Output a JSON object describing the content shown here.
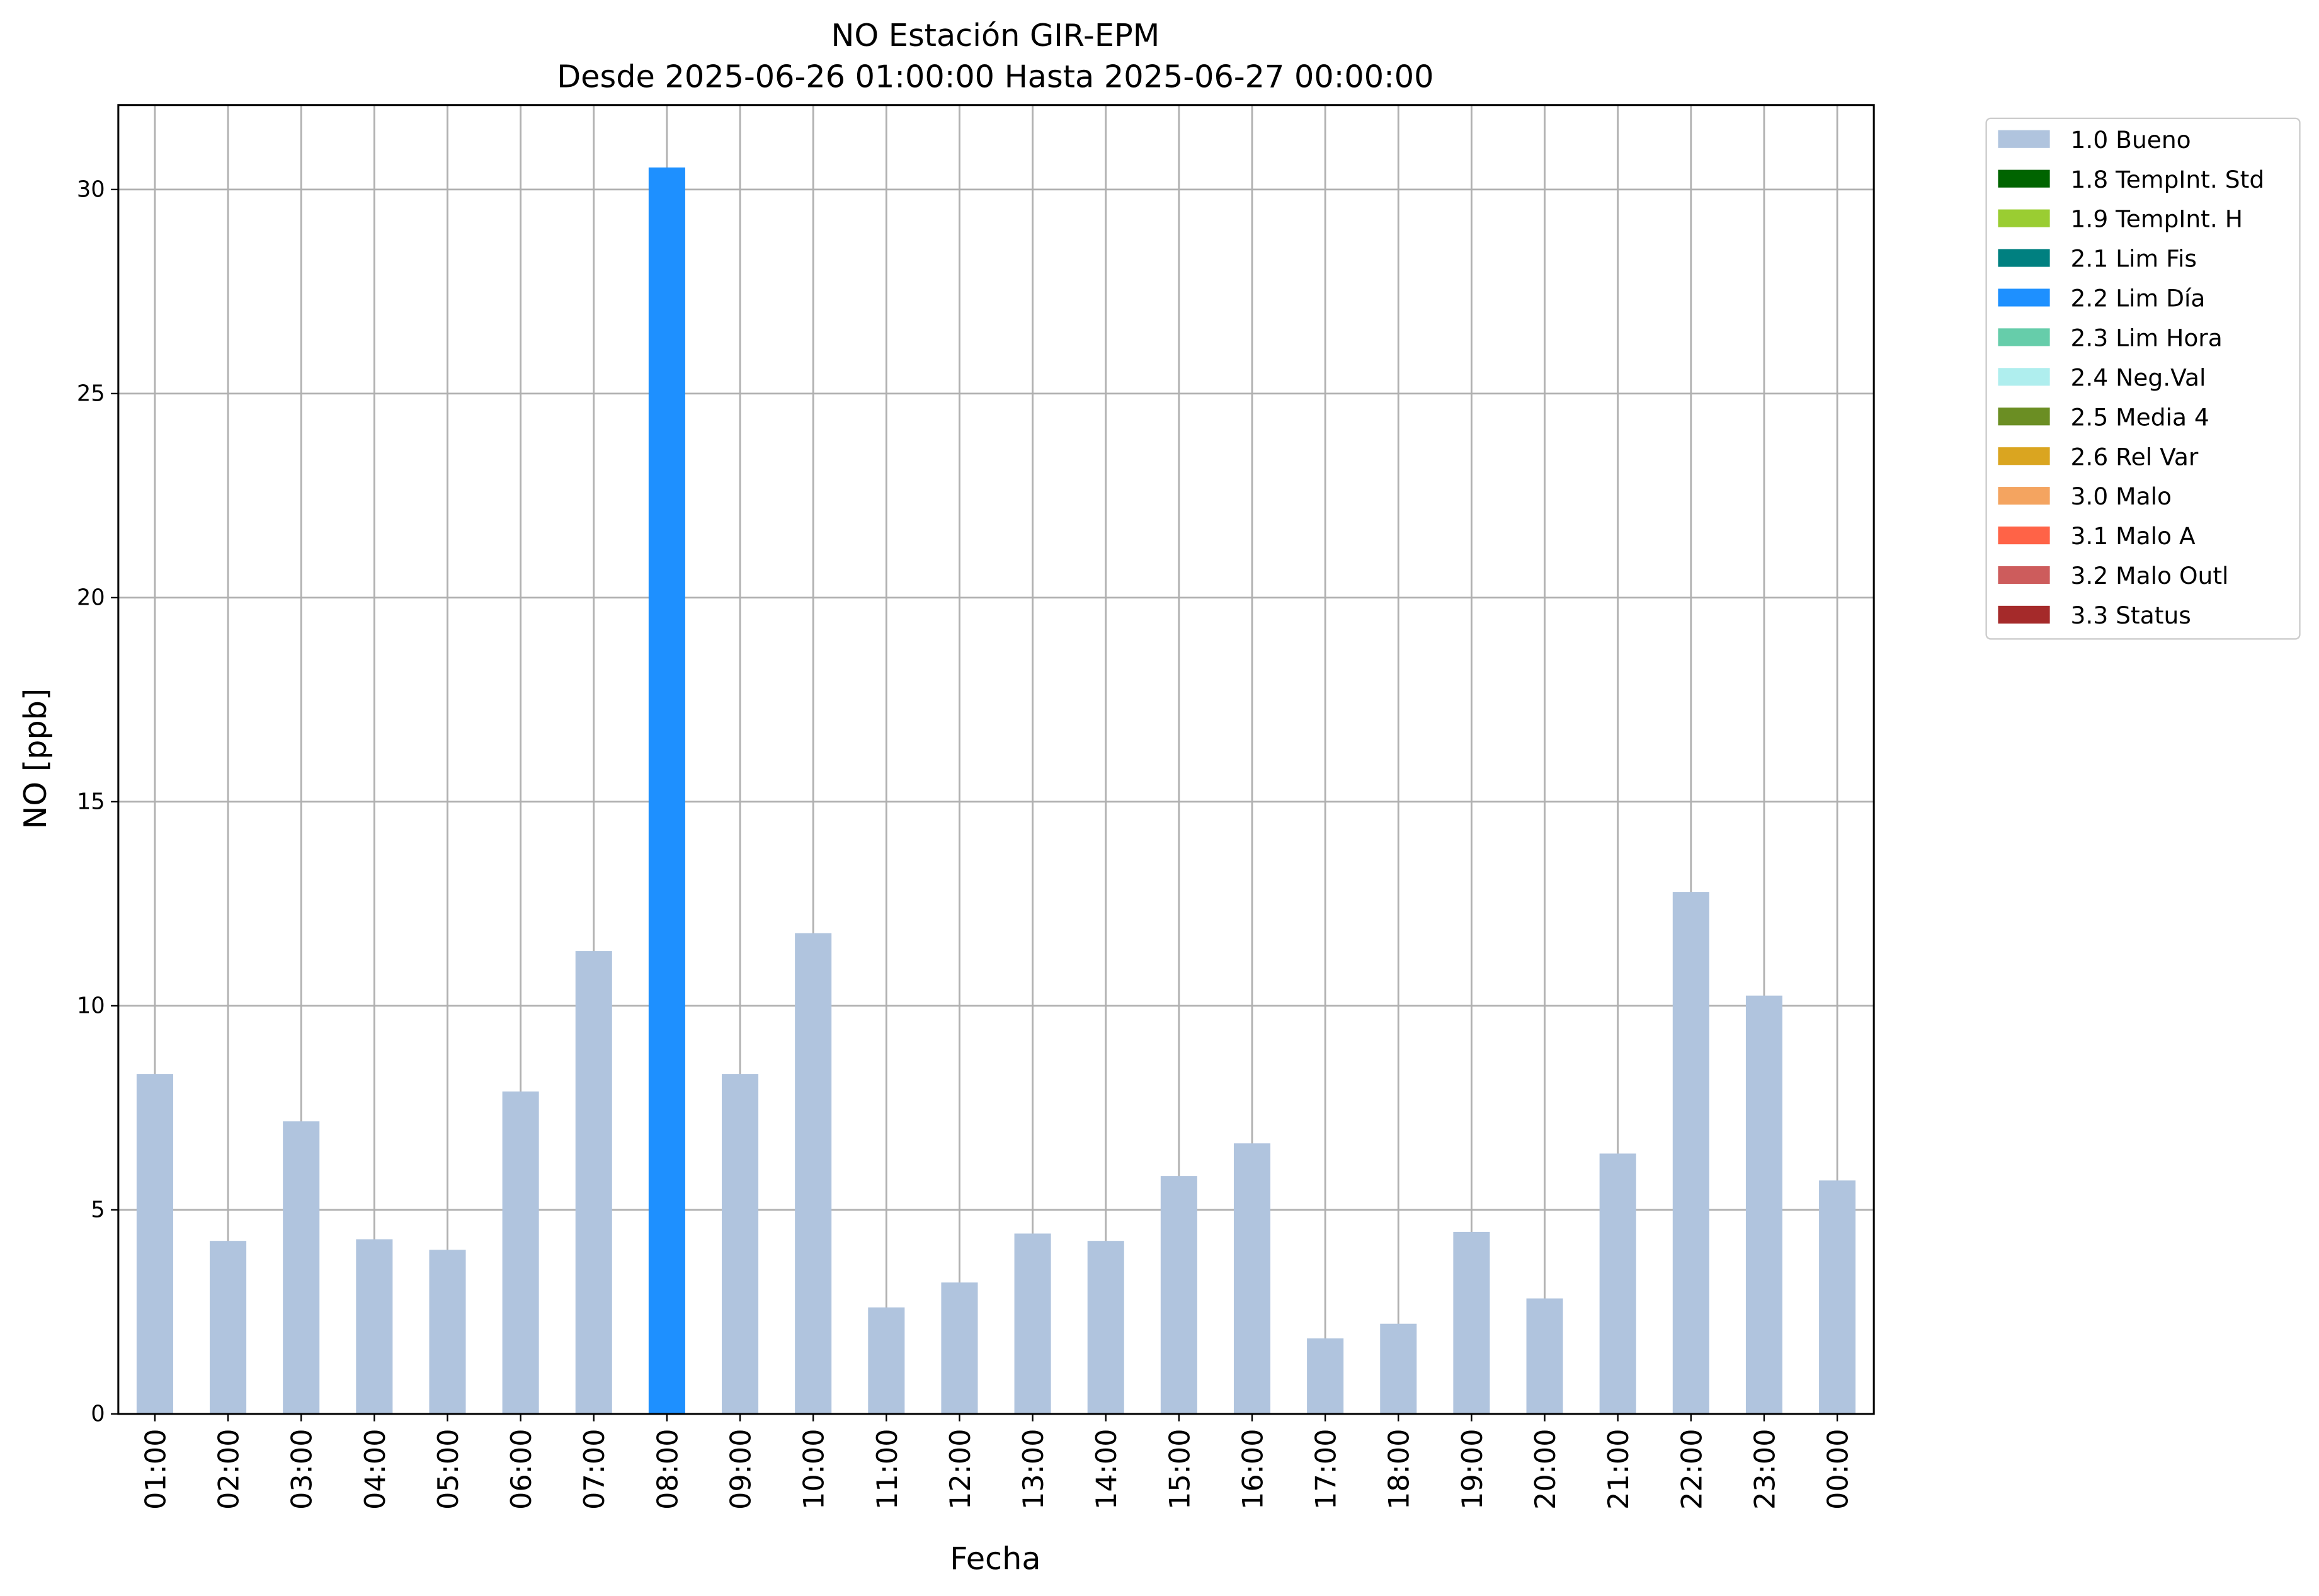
{
  "chart_data": {
    "type": "bar",
    "stacked": true,
    "title": "NO Estación GIR-EPM",
    "subtitle": "Desde 2025-06-26 01:00:00 Hasta 2025-06-27 00:00:00",
    "x_label": "Fecha",
    "y_label": "NO [ppb]",
    "categories": [
      "01:00",
      "02:00",
      "03:00",
      "04:00",
      "05:00",
      "06:00",
      "07:00",
      "08:00",
      "09:00",
      "10:00",
      "11:00",
      "12:00",
      "13:00",
      "14:00",
      "15:00",
      "16:00",
      "17:00",
      "18:00",
      "19:00",
      "20:00",
      "21:00",
      "22:00",
      "23:00",
      "00:00"
    ],
    "series": [
      {
        "name": "1.0 Bueno",
        "color": "#b0c4de",
        "values": [
          8.33,
          4.24,
          7.17,
          4.28,
          4.02,
          7.9,
          11.34,
          null,
          8.33,
          11.78,
          2.61,
          3.22,
          4.42,
          4.24,
          5.83,
          6.63,
          1.85,
          2.21,
          4.46,
          2.83,
          6.38,
          12.79,
          10.25,
          5.72
        ]
      },
      {
        "name": "1.8 TempInt. Std",
        "color": "#006400",
        "values": [
          null,
          null,
          null,
          null,
          null,
          null,
          null,
          null,
          null,
          null,
          null,
          null,
          null,
          null,
          null,
          null,
          null,
          null,
          null,
          null,
          null,
          null,
          null,
          null
        ]
      },
      {
        "name": "1.9 TempInt. H",
        "color": "#9acd32",
        "values": [
          null,
          null,
          null,
          null,
          null,
          null,
          null,
          null,
          null,
          null,
          null,
          null,
          null,
          null,
          null,
          null,
          null,
          null,
          null,
          null,
          null,
          null,
          null,
          null
        ]
      },
      {
        "name": "2.1 Lim Fis",
        "color": "#008080",
        "values": [
          null,
          null,
          null,
          null,
          null,
          null,
          null,
          null,
          null,
          null,
          null,
          null,
          null,
          null,
          null,
          null,
          null,
          null,
          null,
          null,
          null,
          null,
          null,
          null
        ]
      },
      {
        "name": "2.2 Lim Día",
        "color": "#1e90ff",
        "values": [
          null,
          null,
          null,
          null,
          null,
          null,
          null,
          30.54,
          null,
          null,
          null,
          null,
          null,
          null,
          null,
          null,
          null,
          null,
          null,
          null,
          null,
          null,
          null,
          null
        ]
      },
      {
        "name": "2.3 Lim Hora",
        "color": "#66cdaa",
        "values": [
          null,
          null,
          null,
          null,
          null,
          null,
          null,
          null,
          null,
          null,
          null,
          null,
          null,
          null,
          null,
          null,
          null,
          null,
          null,
          null,
          null,
          null,
          null,
          null
        ]
      },
      {
        "name": "2.4 Neg.Val",
        "color": "#afeeee",
        "values": [
          null,
          null,
          null,
          null,
          null,
          null,
          null,
          null,
          null,
          null,
          null,
          null,
          null,
          null,
          null,
          null,
          null,
          null,
          null,
          null,
          null,
          null,
          null,
          null
        ]
      },
      {
        "name": "2.5 Media 4",
        "color": "#6b8e23",
        "values": [
          null,
          null,
          null,
          null,
          null,
          null,
          null,
          null,
          null,
          null,
          null,
          null,
          null,
          null,
          null,
          null,
          null,
          null,
          null,
          null,
          null,
          null,
          null,
          null
        ]
      },
      {
        "name": "2.6 Rel Var",
        "color": "#daa520",
        "values": [
          null,
          null,
          null,
          null,
          null,
          null,
          null,
          null,
          null,
          null,
          null,
          null,
          null,
          null,
          null,
          null,
          null,
          null,
          null,
          null,
          null,
          null,
          null,
          null
        ]
      },
      {
        "name": "3.0 Malo",
        "color": "#f4a460",
        "values": [
          null,
          null,
          null,
          null,
          null,
          null,
          null,
          null,
          null,
          null,
          null,
          null,
          null,
          null,
          null,
          null,
          null,
          null,
          null,
          null,
          null,
          null,
          null,
          null
        ]
      },
      {
        "name": "3.1 Malo A",
        "color": "#ff6347",
        "values": [
          null,
          null,
          null,
          null,
          null,
          null,
          null,
          null,
          null,
          null,
          null,
          null,
          null,
          null,
          null,
          null,
          null,
          null,
          null,
          null,
          null,
          null,
          null,
          null
        ]
      },
      {
        "name": "3.2 Malo Outl",
        "color": "#cd5c5c",
        "values": [
          null,
          null,
          null,
          null,
          null,
          null,
          null,
          null,
          null,
          null,
          null,
          null,
          null,
          null,
          null,
          null,
          null,
          null,
          null,
          null,
          null,
          null,
          null,
          null
        ]
      },
      {
        "name": "3.3 Status",
        "color": "#a52a2a",
        "values": [
          null,
          null,
          null,
          null,
          null,
          null,
          null,
          null,
          null,
          null,
          null,
          null,
          null,
          null,
          null,
          null,
          null,
          null,
          null,
          null,
          null,
          null,
          null,
          null
        ]
      }
    ],
    "ylim": [
      0,
      32.07
    ],
    "yticks": [
      0,
      5,
      10,
      15,
      20,
      25,
      30
    ],
    "grid": true,
    "legend": "outside-right"
  }
}
